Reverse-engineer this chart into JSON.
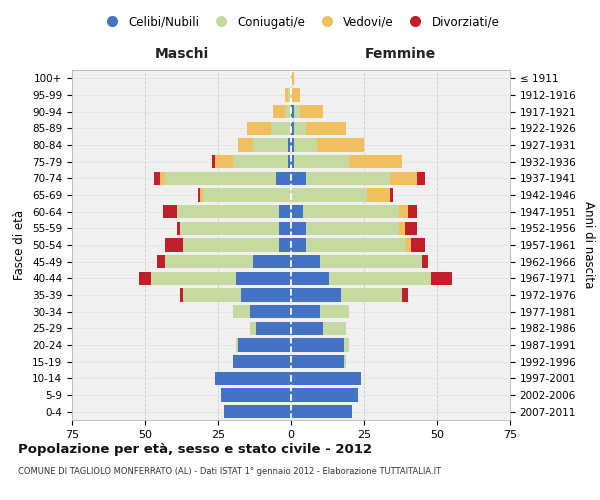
{
  "age_groups": [
    "0-4",
    "5-9",
    "10-14",
    "15-19",
    "20-24",
    "25-29",
    "30-34",
    "35-39",
    "40-44",
    "45-49",
    "50-54",
    "55-59",
    "60-64",
    "65-69",
    "70-74",
    "75-79",
    "80-84",
    "85-89",
    "90-94",
    "95-99",
    "100+"
  ],
  "birth_years": [
    "2007-2011",
    "2002-2006",
    "1997-2001",
    "1992-1996",
    "1987-1991",
    "1982-1986",
    "1977-1981",
    "1972-1976",
    "1967-1971",
    "1962-1966",
    "1957-1961",
    "1952-1956",
    "1947-1951",
    "1942-1946",
    "1937-1941",
    "1932-1936",
    "1927-1931",
    "1922-1926",
    "1917-1921",
    "1912-1916",
    "≤ 1911"
  ],
  "male_celibi": [
    23,
    24,
    26,
    20,
    18,
    12,
    14,
    17,
    19,
    13,
    4,
    4,
    4,
    0,
    5,
    1,
    1,
    0,
    0,
    0,
    0
  ],
  "male_coniugati": [
    0,
    0,
    0,
    0,
    1,
    2,
    6,
    20,
    29,
    30,
    33,
    34,
    35,
    30,
    38,
    19,
    12,
    7,
    2,
    1,
    0
  ],
  "male_vedovi": [
    0,
    0,
    0,
    0,
    0,
    0,
    0,
    0,
    0,
    0,
    0,
    0,
    0,
    1,
    2,
    6,
    5,
    8,
    4,
    1,
    0
  ],
  "male_divorziati": [
    0,
    0,
    0,
    0,
    0,
    0,
    0,
    1,
    4,
    3,
    6,
    1,
    5,
    1,
    2,
    1,
    0,
    0,
    0,
    0,
    0
  ],
  "female_celibi": [
    21,
    23,
    24,
    18,
    18,
    11,
    10,
    17,
    13,
    10,
    5,
    5,
    4,
    0,
    5,
    1,
    1,
    1,
    1,
    0,
    0
  ],
  "female_coniugati": [
    0,
    0,
    0,
    1,
    2,
    8,
    10,
    21,
    35,
    35,
    34,
    32,
    33,
    26,
    29,
    19,
    8,
    4,
    2,
    0,
    0
  ],
  "female_vedovi": [
    0,
    0,
    0,
    0,
    0,
    0,
    0,
    0,
    0,
    0,
    2,
    2,
    3,
    8,
    9,
    18,
    16,
    14,
    8,
    3,
    1
  ],
  "female_divorziati": [
    0,
    0,
    0,
    0,
    0,
    0,
    0,
    2,
    7,
    2,
    5,
    4,
    3,
    1,
    3,
    0,
    0,
    0,
    0,
    0,
    0
  ],
  "color_celibi": "#4472c4",
  "color_coniugati": "#c5d9a0",
  "color_vedovi": "#f0c060",
  "color_divorziati": "#c0202a",
  "title": "Popolazione per età, sesso e stato civile - 2012",
  "subtitle": "COMUNE DI TAGLIOLO MONFERRATO (AL) - Dati ISTAT 1° gennaio 2012 - Elaborazione TUTTAITALIA.IT",
  "label_maschi": "Maschi",
  "label_femmine": "Femmine",
  "ylabel_left": "Fasce di età",
  "ylabel_right": "Anni di nascita",
  "legend_labels": [
    "Celibi/Nubili",
    "Coniugati/e",
    "Vedovi/e",
    "Divorziati/e"
  ],
  "xlim": 75,
  "bg_color": "#f0f0f0",
  "grid_color": "#cccccc"
}
